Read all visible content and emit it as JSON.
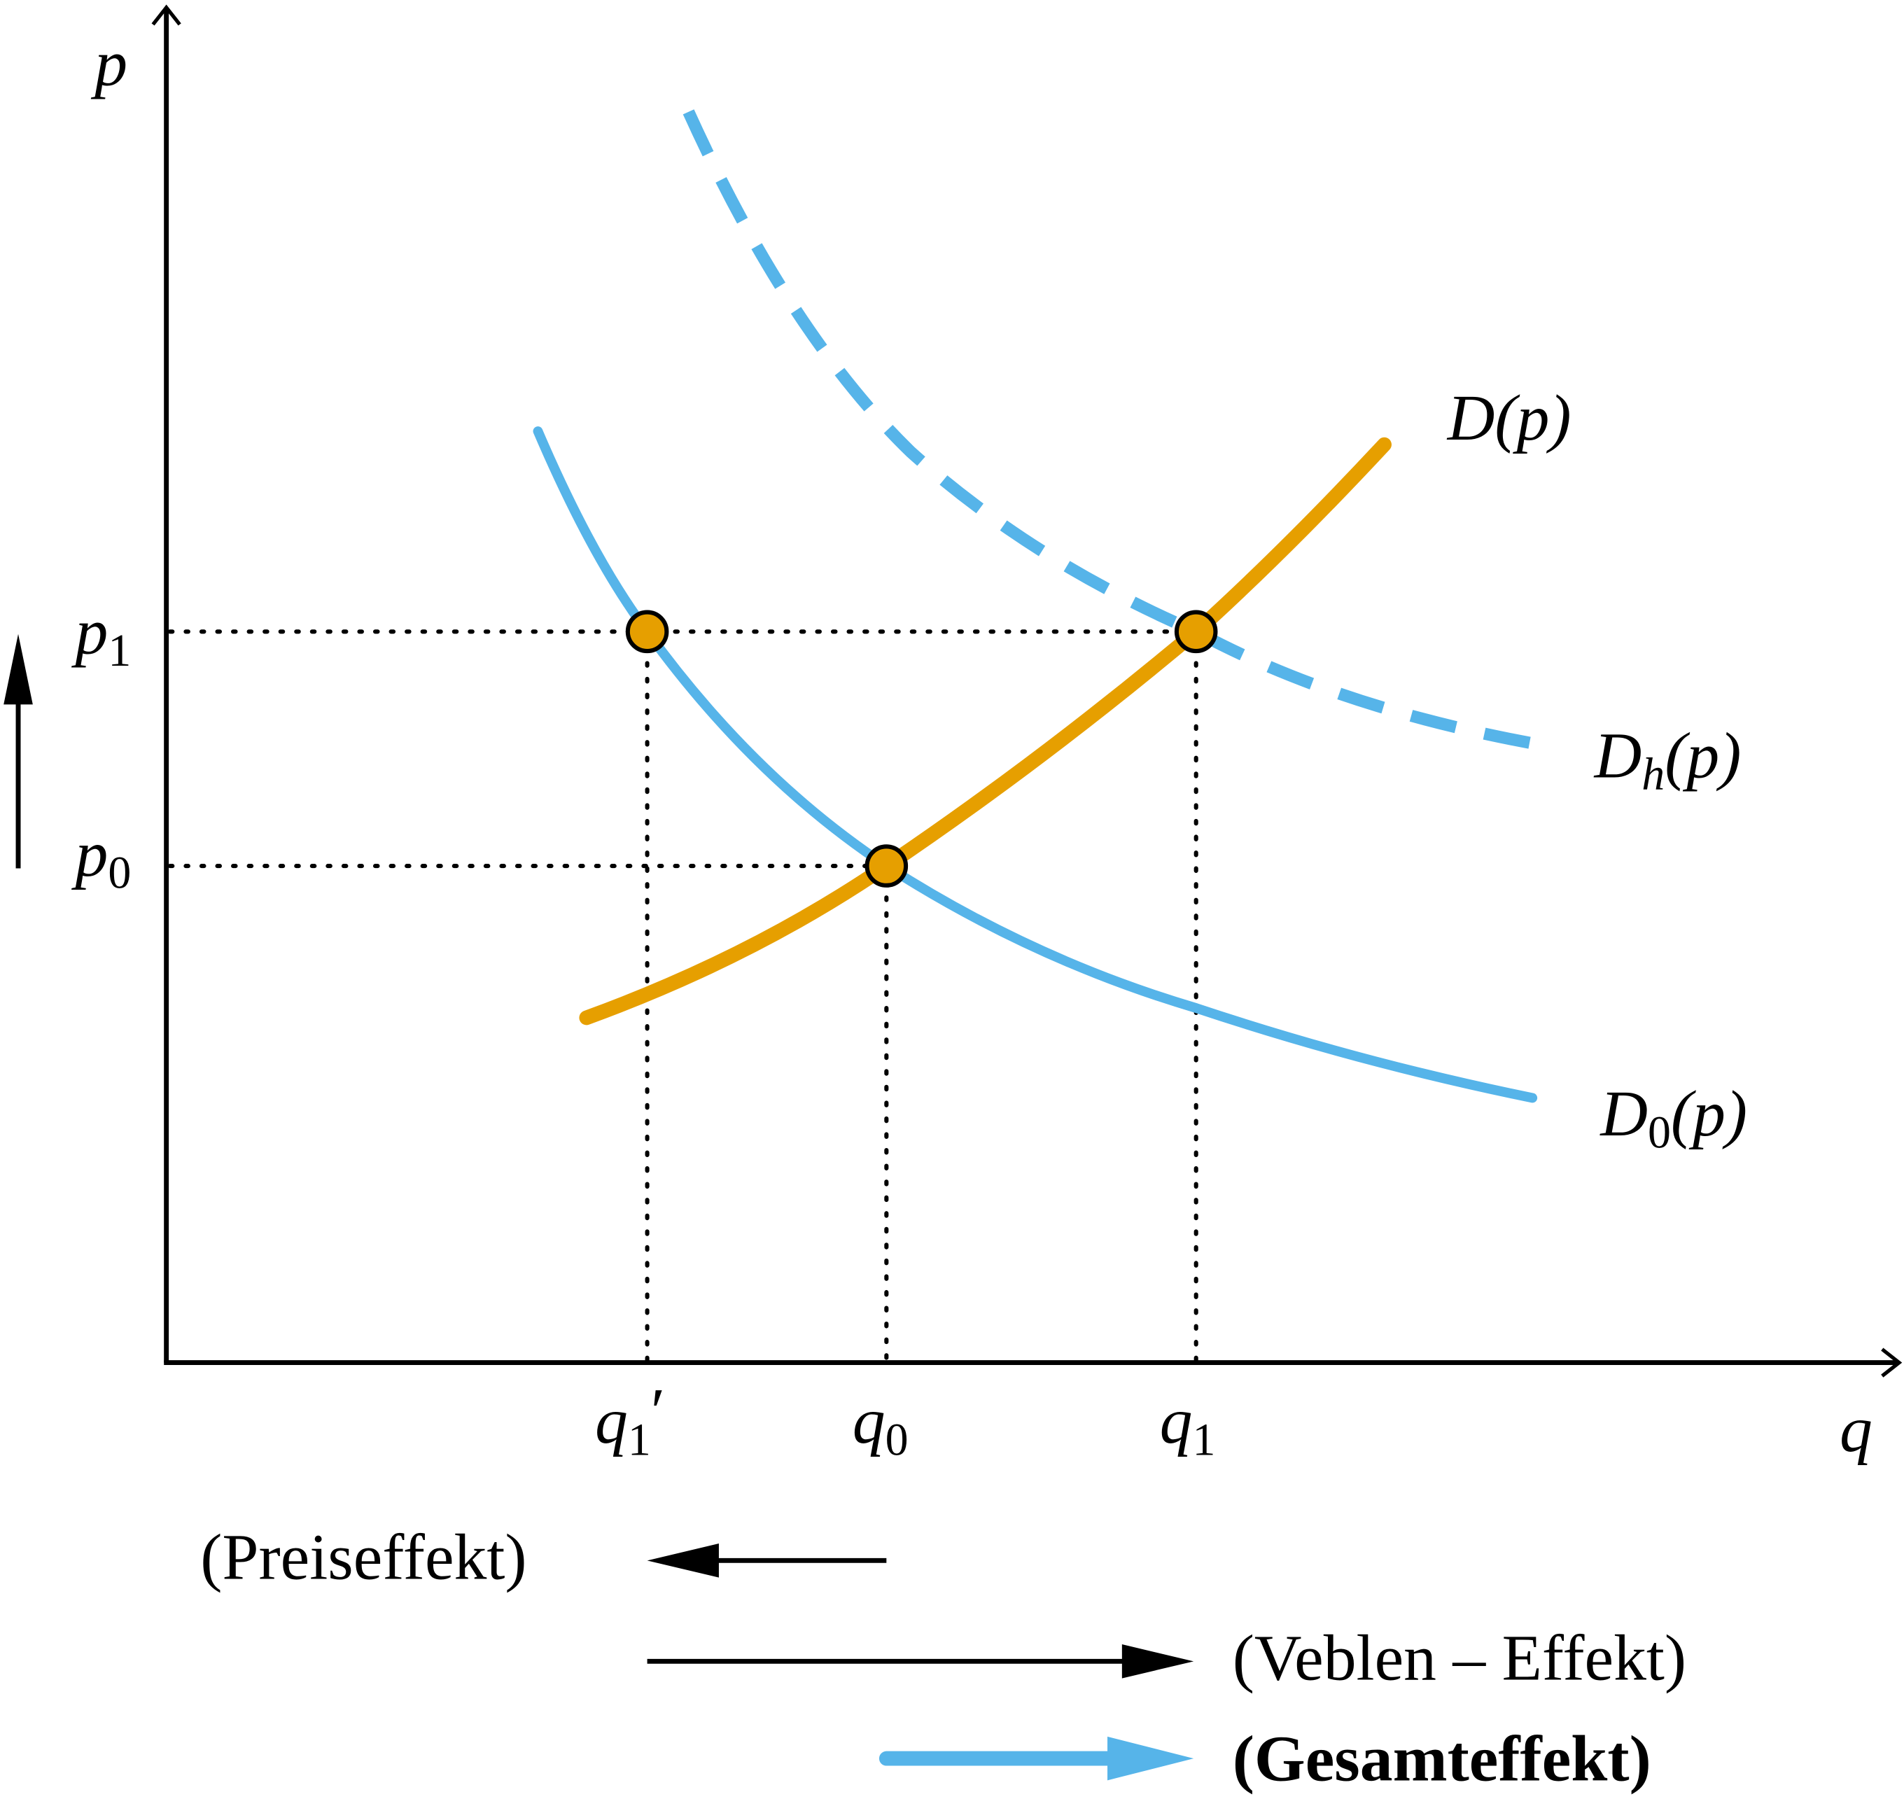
{
  "axes": {
    "x_label": "q",
    "y_label": "p"
  },
  "price_labels": [
    {
      "symbol": "p",
      "sub": "1"
    },
    {
      "symbol": "p",
      "sub": "0"
    }
  ],
  "quantity_labels": [
    {
      "symbol": "q",
      "sub": "1",
      "prime": "′"
    },
    {
      "symbol": "q",
      "sub": "0"
    },
    {
      "symbol": "q",
      "sub": "1"
    }
  ],
  "curves": {
    "supply": {
      "name": "D",
      "arg": "(p)"
    },
    "hypothetical": {
      "name": "D",
      "sub": "h",
      "arg": "(p)"
    },
    "original": {
      "name": "D",
      "sub": "0",
      "arg": "(p)"
    }
  },
  "effects": {
    "price": "(Preiseffekt)",
    "veblen": "(Veblen – Effekt)",
    "total": "(Gesamteffekt)"
  }
}
